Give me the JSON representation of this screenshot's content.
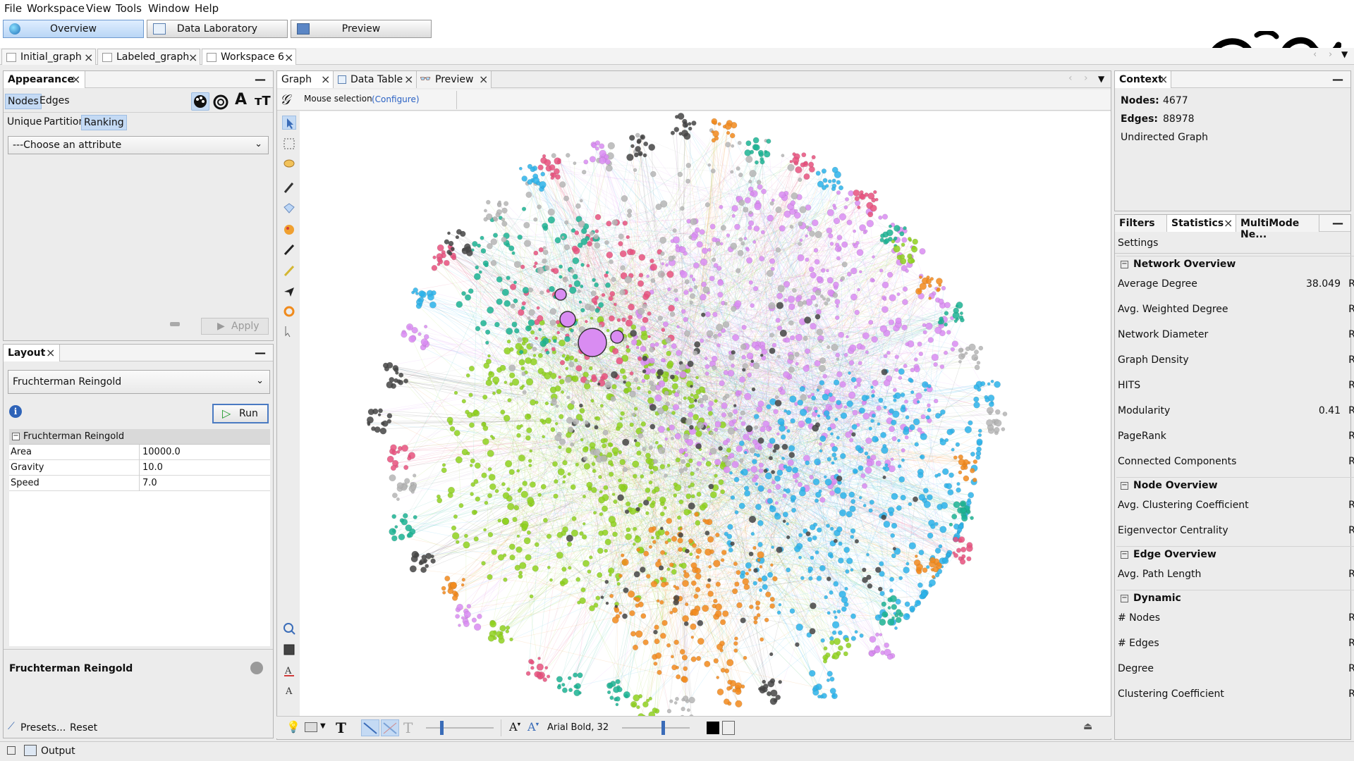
{
  "menu": [
    "File",
    "Workspace",
    "View",
    "Tools",
    "Window",
    "Help"
  ],
  "perspectives": [
    {
      "label": "Overview",
      "active": true
    },
    {
      "label": "Data Laboratory",
      "active": false
    },
    {
      "label": "Preview",
      "active": false
    }
  ],
  "workspaces": [
    {
      "label": "Initial_graph",
      "active": false
    },
    {
      "label": "Labeled_graph",
      "active": false
    },
    {
      "label": "Workspace 6",
      "active": true
    }
  ],
  "appearance": {
    "title": "Appearance",
    "tabs": [
      "Nodes",
      "Edges"
    ],
    "modes": [
      "Unique",
      "Partition",
      "Ranking"
    ],
    "attribute_placeholder": "---Choose an attribute",
    "apply_label": "Apply"
  },
  "layout": {
    "title": "Layout",
    "algorithm": "Fruchterman Reingold",
    "run_label": "Run",
    "group_label": "Fruchterman Reingold",
    "params": [
      {
        "name": "Area",
        "value": "10000.0"
      },
      {
        "name": "Gravity",
        "value": "10.0"
      },
      {
        "name": "Speed",
        "value": "7.0"
      }
    ],
    "description_title": "Fruchterman Reingold",
    "presets_label": "Presets...",
    "reset_label": "Reset"
  },
  "graph": {
    "tabs": [
      "Graph",
      "Data Table",
      "Preview"
    ],
    "mouse_selection_label": "Mouse selection",
    "configure_label": "(Configure)",
    "font_label": "Arial Bold, 32"
  },
  "context": {
    "title": "Context",
    "nodes_label": "Nodes:",
    "nodes_value": "4677",
    "edges_label": "Edges:",
    "edges_value": "88978",
    "graph_type": "Undirected Graph"
  },
  "stats_panel": {
    "tabs": [
      "Filters",
      "Statistics",
      "MultiMode Ne..."
    ],
    "settings_label": "Settings",
    "run_label": "Run",
    "sections": [
      {
        "title": "Network Overview",
        "rows": [
          {
            "name": "Average Degree",
            "value": "38.049",
            "help": true
          },
          {
            "name": "Avg. Weighted Degree",
            "value": "",
            "help": false
          },
          {
            "name": "Network Diameter",
            "value": "",
            "help": false
          },
          {
            "name": "Graph Density",
            "value": "",
            "help": false
          },
          {
            "name": "HITS",
            "value": "",
            "help": false
          },
          {
            "name": "Modularity",
            "value": "0.41",
            "help": true
          },
          {
            "name": "PageRank",
            "value": "",
            "help": false
          },
          {
            "name": "Connected Components",
            "value": "",
            "help": false
          }
        ]
      },
      {
        "title": "Node Overview",
        "rows": [
          {
            "name": "Avg. Clustering Coefficient",
            "value": "",
            "help": false
          },
          {
            "name": "Eigenvector Centrality",
            "value": "",
            "help": false
          }
        ]
      },
      {
        "title": "Edge Overview",
        "rows": [
          {
            "name": "Avg. Path Length",
            "value": "",
            "help": false
          }
        ]
      },
      {
        "title": "Dynamic",
        "rows": [
          {
            "name": "# Nodes",
            "value": "",
            "help": false
          },
          {
            "name": "# Edges",
            "value": "",
            "help": false
          },
          {
            "name": "Degree",
            "value": "",
            "help": false
          },
          {
            "name": "Clustering Coefficient",
            "value": "",
            "help": false
          }
        ]
      }
    ]
  },
  "status": {
    "output_label": "Output"
  },
  "cluster_colors": [
    "#8fd11f",
    "#d98cf2",
    "#2bb3ea",
    "#f28a1c",
    "#e8517e",
    "#1bb393",
    "#444444",
    "#b5b5b5"
  ]
}
